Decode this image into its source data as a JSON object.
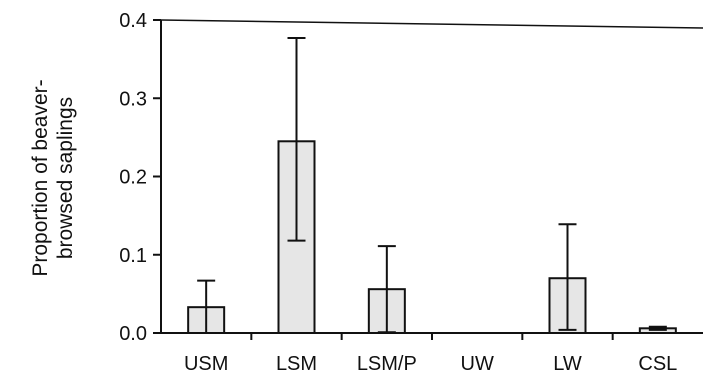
{
  "chart_data": {
    "type": "bar",
    "title": "",
    "xlabel": "",
    "ylabel_lines": [
      "Proportion of beaver-",
      "browsed saplings"
    ],
    "categories": [
      "USM",
      "LSM",
      "LSM/P",
      "UW",
      "LW",
      "CSL"
    ],
    "values": [
      0.033,
      0.245,
      0.056,
      0.0,
      0.07,
      0.006
    ],
    "error_upper": [
      0.067,
      0.377,
      0.111,
      0.0,
      0.139,
      0.008
    ],
    "error_lower": [
      0.0,
      0.118,
      0.001,
      0.0,
      0.004,
      0.004
    ],
    "ylim": [
      0,
      0.4
    ],
    "yticks": [
      0.0,
      0.1,
      0.2,
      0.3,
      0.4
    ],
    "ytick_labels": [
      "0.0",
      "0.1",
      "0.2",
      "0.3",
      "0.4"
    ],
    "grid": false,
    "legend": "none",
    "colors": {
      "bar_fill": "#e6e6e6",
      "stroke": "#111111"
    }
  }
}
